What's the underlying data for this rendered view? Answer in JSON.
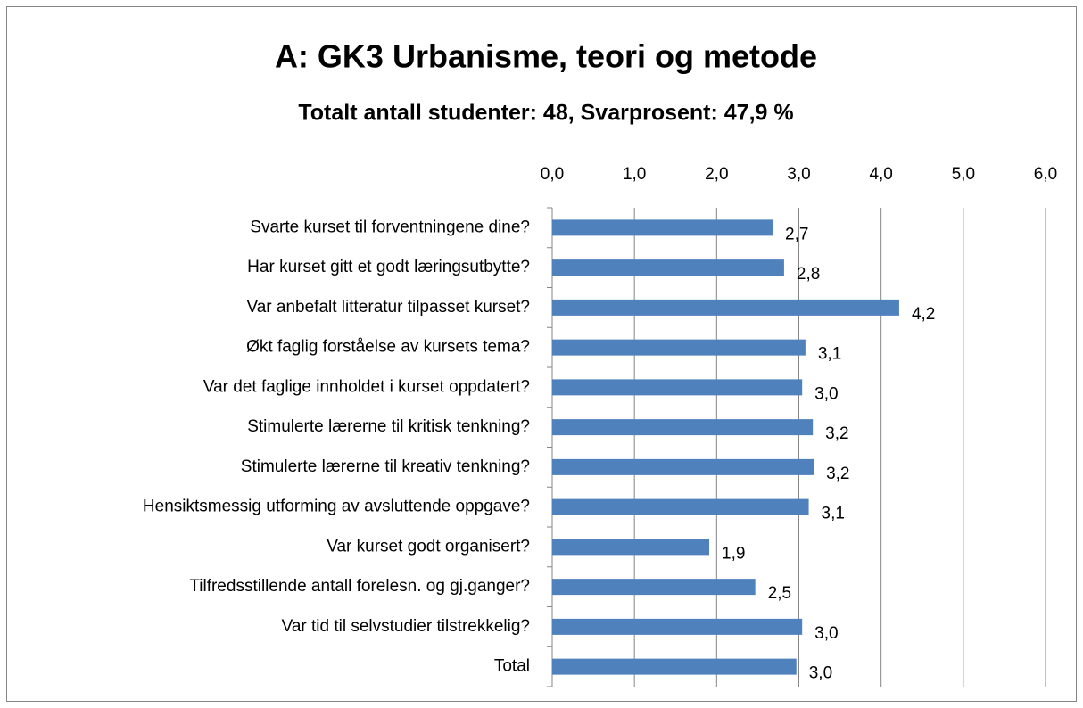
{
  "chart_data": {
    "type": "bar",
    "orientation": "horizontal",
    "title": "A: GK3 Urbanisme, teori og metode",
    "subtitle": "Totalt antall studenter: 48, Svarprosent: 47,9 %",
    "categories": [
      "Svarte kurset til forventningene dine?",
      "Har kurset gitt et godt læringsutbytte?",
      "Var anbefalt litteratur tilpasset kurset?",
      "Økt faglig forståelse av kursets tema?",
      "Var det faglige innholdet i kurset oppdatert?",
      "Stimulerte lærerne til kritisk tenkning?",
      "Stimulerte lærerne til kreativ tenkning?",
      "Hensiktsmessig utforming av avsluttende oppgave?",
      "Var kurset godt organisert?",
      "Tilfredsstillende antall forelesn. og gj.ganger?",
      "Var tid til selvstudier tilstrekkelig?",
      "Total"
    ],
    "values": [
      2.68,
      2.82,
      4.22,
      3.08,
      3.04,
      3.17,
      3.18,
      3.12,
      1.91,
      2.47,
      3.04,
      2.97
    ],
    "value_labels": [
      "2,7",
      "2,8",
      "4,2",
      "3,1",
      "3,0",
      "3,2",
      "3,2",
      "3,1",
      "1,9",
      "2,5",
      "3,0",
      "3,0"
    ],
    "color": "#4f81bd",
    "xlim": [
      0,
      6
    ],
    "xticks": [
      {
        "value": 0,
        "label": "0,0"
      },
      {
        "value": 1,
        "label": "1,0"
      },
      {
        "value": 2,
        "label": "2,0"
      },
      {
        "value": 3,
        "label": "3,0"
      },
      {
        "value": 4,
        "label": "4,0"
      },
      {
        "value": 5,
        "label": "5,0"
      },
      {
        "value": 6,
        "label": "6,0"
      }
    ],
    "grid": true
  }
}
